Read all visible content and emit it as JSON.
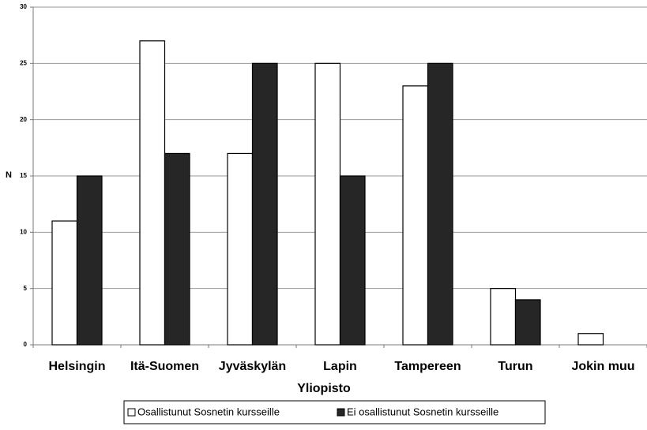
{
  "chart_data": {
    "type": "bar",
    "categories": [
      "Helsingin",
      "Itä-Suomen",
      "Jyväskylän",
      "Lapin",
      "Tampereen",
      "Turun",
      "Jokin muu"
    ],
    "series": [
      {
        "name": "Osallistunut Sosnetin kursseille",
        "color": "#ffffff",
        "values": [
          11,
          27,
          17,
          25,
          23,
          5,
          1
        ]
      },
      {
        "name": "Ei osallistunut Sosnetin kursseille",
        "color": "#262626",
        "values": [
          15,
          17,
          25,
          15,
          25,
          4,
          0
        ]
      }
    ],
    "ylabel": "N",
    "xlabel": "Yliopisto",
    "ylim": [
      0,
      30
    ],
    "yticks": [
      0,
      5,
      10,
      15,
      20,
      25,
      30
    ],
    "grid": true,
    "legend": "bottom"
  }
}
